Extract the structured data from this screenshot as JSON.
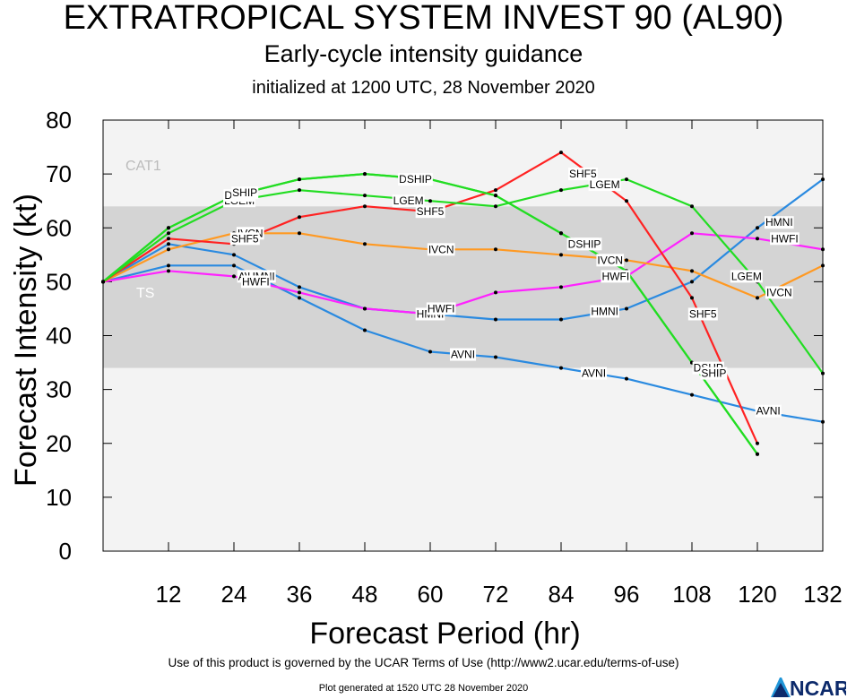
{
  "header": {
    "title": "EXTRATROPICAL SYSTEM INVEST 90 (AL90)",
    "subtitle": "Early-cycle intensity guidance",
    "initialized": "initialized at 1200 UTC, 28 November 2020"
  },
  "footer": {
    "terms": "Use of this product is governed by the UCAR Terms of Use (http://www2.ucar.edu/terms-of-use)",
    "generated": "Plot generated at 1520 UTC   28 November 2020",
    "logo_text": "NCAR"
  },
  "chart_data": {
    "type": "line",
    "xlabel": "Forecast Period (hr)",
    "ylabel": "Forecast Intensity (kt)",
    "xlim": [
      0,
      132
    ],
    "ylim": [
      0,
      80
    ],
    "x_ticks": [
      12,
      24,
      36,
      48,
      60,
      72,
      84,
      96,
      108,
      120,
      132
    ],
    "y_ticks": [
      0,
      10,
      20,
      30,
      40,
      50,
      60,
      70,
      80
    ],
    "grid": false,
    "bands": [
      {
        "label": "TS",
        "from": 34,
        "to": 64,
        "color": "#d4d4d4"
      },
      {
        "label": "CAT1",
        "from": 64,
        "to": 80,
        "color": "#f3f3f3"
      }
    ],
    "below_band_color": "#f3f3f3",
    "series": [
      {
        "name": "AVNI",
        "color": "#2a8ae0",
        "points": [
          [
            0,
            50
          ],
          [
            12,
            53
          ],
          [
            24,
            53
          ],
          [
            36,
            47
          ],
          [
            48,
            41
          ],
          [
            60,
            37
          ],
          [
            72,
            36
          ],
          [
            84,
            34
          ],
          [
            96,
            32
          ],
          [
            108,
            29
          ],
          [
            120,
            26
          ],
          [
            132,
            24
          ]
        ],
        "labels": [
          [
            27,
            51
          ],
          [
            66,
            36.5
          ],
          [
            90,
            33
          ],
          [
            122,
            26
          ]
        ]
      },
      {
        "name": "HMNI",
        "color": "#2a8ae0",
        "points": [
          [
            0,
            50
          ],
          [
            12,
            57
          ],
          [
            24,
            55
          ],
          [
            36,
            49
          ],
          [
            48,
            45
          ],
          [
            60,
            44
          ],
          [
            72,
            43
          ],
          [
            84,
            43
          ],
          [
            96,
            45
          ],
          [
            108,
            50
          ],
          [
            120,
            60
          ],
          [
            132,
            69
          ]
        ],
        "labels": [
          [
            29,
            51
          ],
          [
            60,
            44
          ],
          [
            92,
            44.5
          ],
          [
            124,
            61
          ]
        ]
      },
      {
        "name": "HWFI",
        "color": "#ff22ff",
        "points": [
          [
            0,
            50
          ],
          [
            12,
            52
          ],
          [
            24,
            51
          ],
          [
            36,
            48
          ],
          [
            48,
            45
          ],
          [
            60,
            44
          ],
          [
            72,
            48
          ],
          [
            84,
            49
          ],
          [
            96,
            51
          ],
          [
            108,
            59
          ],
          [
            120,
            58
          ],
          [
            132,
            56
          ]
        ],
        "labels": [
          [
            28,
            50
          ],
          [
            62,
            45
          ],
          [
            94,
            51
          ],
          [
            125,
            58
          ]
        ]
      },
      {
        "name": "IVCN",
        "color": "#ff9922",
        "points": [
          [
            0,
            50
          ],
          [
            12,
            56
          ],
          [
            24,
            59
          ],
          [
            36,
            59
          ],
          [
            48,
            57
          ],
          [
            60,
            56
          ],
          [
            72,
            56
          ],
          [
            84,
            55
          ],
          [
            96,
            54
          ],
          [
            108,
            52
          ],
          [
            120,
            47
          ],
          [
            132,
            53
          ]
        ],
        "labels": [
          [
            27,
            59
          ],
          [
            62,
            56
          ],
          [
            93,
            54
          ],
          [
            124,
            48
          ]
        ]
      },
      {
        "name": "SHF5",
        "color": "#ff2222",
        "points": [
          [
            0,
            50
          ],
          [
            12,
            58
          ],
          [
            24,
            57
          ],
          [
            36,
            62
          ],
          [
            48,
            64
          ],
          [
            60,
            63
          ],
          [
            72,
            67
          ],
          [
            84,
            74
          ],
          [
            96,
            65
          ],
          [
            108,
            47
          ],
          [
            120,
            20
          ]
        ],
        "labels": [
          [
            26,
            58
          ],
          [
            60,
            63
          ],
          [
            88,
            70
          ],
          [
            110,
            44
          ]
        ]
      },
      {
        "name": "LGEM",
        "color": "#22dd22",
        "points": [
          [
            0,
            50
          ],
          [
            12,
            59
          ],
          [
            24,
            65
          ],
          [
            36,
            67
          ],
          [
            48,
            66
          ],
          [
            60,
            65
          ],
          [
            72,
            64
          ],
          [
            84,
            67
          ],
          [
            96,
            69
          ],
          [
            108,
            64
          ],
          [
            120,
            50
          ],
          [
            132,
            33
          ]
        ],
        "labels": [
          [
            25,
            65
          ],
          [
            56,
            65
          ],
          [
            92,
            68
          ],
          [
            118,
            51
          ]
        ]
      },
      {
        "name": "DSHP",
        "color": "#22dd22",
        "points": [
          [
            0,
            50
          ],
          [
            12,
            60
          ],
          [
            24,
            66
          ],
          [
            36,
            69
          ],
          [
            48,
            70
          ],
          [
            60,
            69
          ],
          [
            72,
            66
          ],
          [
            84,
            59
          ],
          [
            96,
            52
          ],
          [
            108,
            35
          ],
          [
            120,
            18
          ]
        ],
        "labels": [
          [
            25,
            66
          ],
          [
            57,
            69
          ],
          [
            88,
            57
          ],
          [
            111,
            34
          ]
        ]
      },
      {
        "name": "SHIP",
        "color": "#22dd22",
        "points": [
          [
            0,
            50
          ],
          [
            12,
            60
          ],
          [
            24,
            66
          ],
          [
            36,
            69
          ],
          [
            48,
            70
          ],
          [
            60,
            69
          ],
          [
            72,
            66
          ],
          [
            84,
            59
          ],
          [
            96,
            52
          ],
          [
            108,
            35
          ],
          [
            120,
            18
          ]
        ],
        "labels": [
          [
            26,
            66.5
          ],
          [
            58,
            69
          ],
          [
            89,
            57
          ],
          [
            112,
            33
          ]
        ]
      }
    ]
  }
}
